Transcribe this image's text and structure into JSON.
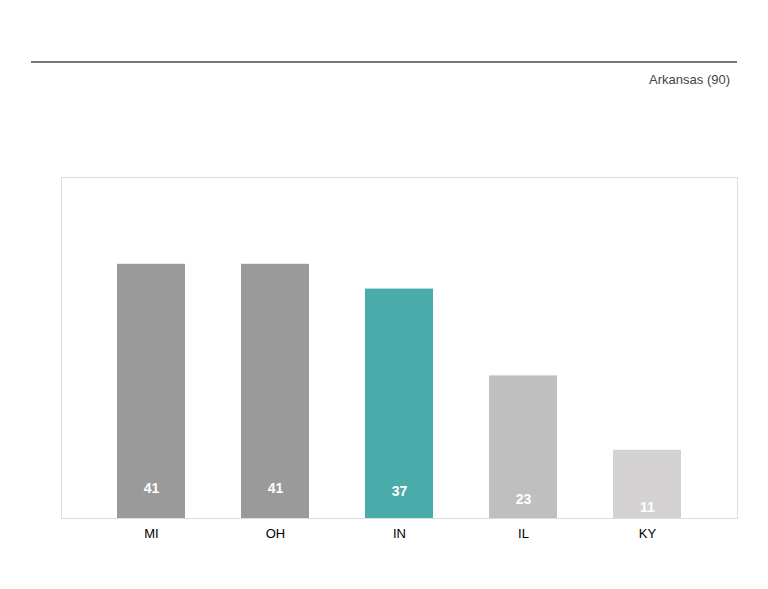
{
  "chart_data": {
    "type": "bar",
    "categories": [
      "MI",
      "OH",
      "IN",
      "IL",
      "KY"
    ],
    "values": [
      41,
      41,
      37,
      23,
      11
    ],
    "colors": [
      "#9a9a9a",
      "#9a9a9a",
      "#4aabab",
      "#c0bfbf",
      "#d4d2d2"
    ],
    "ylim": [
      0,
      55
    ],
    "yticks": [],
    "tick_labels": "x",
    "data_labels": true,
    "grid": false,
    "annotation": "Arkansas (90)"
  }
}
